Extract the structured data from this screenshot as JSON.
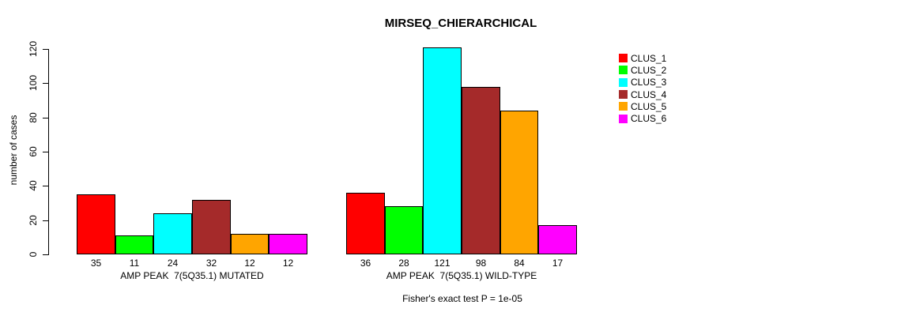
{
  "title": "MIRSEQ_CHIERARCHICAL",
  "subtitle": "Fisher's exact test P = 1e-05",
  "chart_data": {
    "type": "bar",
    "title": "MIRSEQ_CHIERARCHICAL",
    "ylabel": "number of cases",
    "xlabel": "",
    "ylim": [
      0,
      120
    ],
    "yticks": [
      0,
      20,
      40,
      60,
      80,
      100,
      120
    ],
    "grid": "off",
    "legend_position": "right-outside",
    "annotation": "Fisher's exact test P = 1e-05",
    "series": [
      {
        "name": "CLUS_1",
        "color": "#FF0000"
      },
      {
        "name": "CLUS_2",
        "color": "#00FF00"
      },
      {
        "name": "CLUS_3",
        "color": "#00FFFF"
      },
      {
        "name": "CLUS_4",
        "color": "#A52A2A"
      },
      {
        "name": "CLUS_5",
        "color": "#FFA500"
      },
      {
        "name": "CLUS_6",
        "color": "#FF00FF"
      }
    ],
    "groups": [
      {
        "label": "AMP PEAK  7(5Q35.1) MUTATED",
        "values": [
          35,
          11,
          24,
          32,
          12,
          12
        ]
      },
      {
        "label": "AMP PEAK  7(5Q35.1) WILD-TYPE",
        "values": [
          36,
          28,
          121,
          98,
          84,
          17
        ]
      }
    ]
  },
  "colors": {
    "axis": "#000000",
    "background": "#FFFFFF"
  }
}
